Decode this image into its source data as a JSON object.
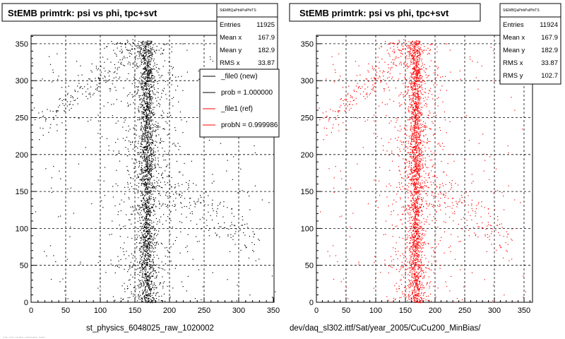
{
  "chart_data": [
    {
      "type": "scatter",
      "title": "StEMB primtrk: psi vs phi, tpc+svt",
      "xlabel": "st_physics_6048025_raw_1020002",
      "ylabel": "",
      "xlim": [
        0,
        360
      ],
      "ylim": [
        0,
        360
      ],
      "xticks": [
        "0",
        "50",
        "100",
        "150",
        "200",
        "250",
        "300",
        "350"
      ],
      "yticks": [
        "0",
        "50",
        "100",
        "150",
        "200",
        "250",
        "300",
        "350"
      ],
      "grid": true,
      "marker_color": "#000000",
      "stats": {
        "name": "StEMBQaPtrkPsiPhiTS",
        "rows": [
          {
            "label": "Entries",
            "value": "11925"
          },
          {
            "label": "Mean x",
            "value": "167.9"
          },
          {
            "label": "Mean y",
            "value": "182.9"
          },
          {
            "label": "RMS x",
            "value": "33.87"
          }
        ]
      },
      "legend": {
        "placement": "top-right",
        "entries": [
          {
            "label": "_file0 (new)",
            "color": "#000000"
          },
          {
            "label": "prob = 1.000000",
            "color": "#000000"
          },
          {
            "label": "_file1 (ref)",
            "color": "#ff0000"
          },
          {
            "label": "probN = 0.999986",
            "color": "#ff0000"
          }
        ]
      },
      "distribution": {
        "band_center_x": 167,
        "band_halfwidth_x": 12,
        "wide_halfwidth_x": 45,
        "diagonal_band": true
      }
    },
    {
      "type": "scatter",
      "title": "StEMB primtrk: psi vs phi, tpc+svt",
      "xlabel": "dev/daq_sl302.ittf/Sat/year_2005/CuCu200_MinBias/",
      "ylabel": "",
      "xlim": [
        0,
        360
      ],
      "ylim": [
        0,
        360
      ],
      "xticks": [
        "0",
        "50",
        "100",
        "150",
        "200",
        "250",
        "300",
        "350"
      ],
      "yticks": [
        "0",
        "50",
        "100",
        "150",
        "200",
        "250",
        "300",
        "350"
      ],
      "grid": true,
      "marker_color": "#ff0000",
      "stats": {
        "name": "StEMBQaPtrkPsiPhiTS",
        "rows": [
          {
            "label": "Entries",
            "value": "11924"
          },
          {
            "label": "Mean x",
            "value": "167.9"
          },
          {
            "label": "Mean y",
            "value": "182.9"
          },
          {
            "label": "RMS x",
            "value": "33.87"
          },
          {
            "label": "RMS y",
            "value": "102.7"
          }
        ]
      },
      "distribution": {
        "band_center_x": 167,
        "band_halfwidth_x": 12,
        "wide_halfwidth_x": 45,
        "diagonal_band": true
      }
    }
  ],
  "footer_text": "... ... ..... ........ ...."
}
